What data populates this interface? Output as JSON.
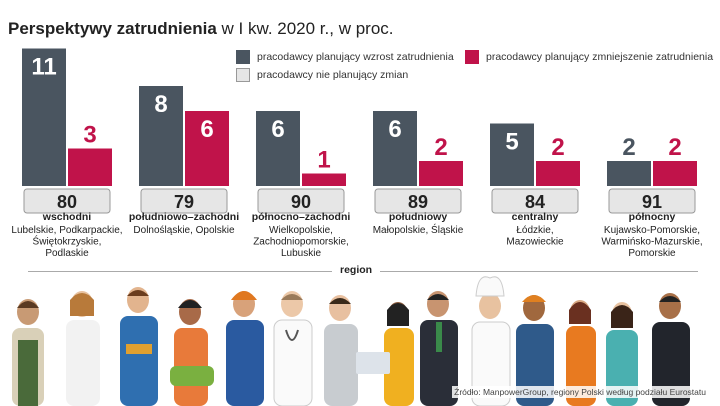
{
  "title": {
    "bold": "Perspektywy zatrudnienia",
    "rest": " w I kw. 2020 r., w proc."
  },
  "legend": {
    "increase": "pracodawcy planujący wzrost zatrudnienia",
    "decrease": "pracodawcy planujący zmniejszenie zatrudnienia",
    "nochange": "pracodawcy nie planujący zmian"
  },
  "colors": {
    "increase": "#4a5560",
    "decrease": "#c0134a",
    "nochange": "#e6e6e6",
    "nochange_border": "#999999"
  },
  "axis_label": "region",
  "source": "Źródło: ManpowerGroup, regiony Polski według podziału Eurostatu",
  "chart_data": {
    "type": "bar",
    "title": "Perspektywy zatrudnienia w I kw. 2020 r., w proc.",
    "xlabel": "region",
    "ylabel": "",
    "categories": [
      "wschodni",
      "południowo–zachodni",
      "północno–zachodni",
      "południowy",
      "centralny",
      "północny"
    ],
    "category_details": [
      [
        "Lubelskie, Podkarpackie,",
        "Świętokrzyskie,",
        "Podlaskie"
      ],
      [
        "Dolnośląskie, Opolskie"
      ],
      [
        "Wielkopolskie,",
        "Zachodniopomorskie,",
        "Lubuskie"
      ],
      [
        "Małopolskie, Śląskie"
      ],
      [
        "Łódzkie,",
        "Mazowieckie"
      ],
      [
        "Kujawsko-Pomorskie,",
        "Warmińsko-Mazurskie,",
        "Pomorskie"
      ]
    ],
    "series": [
      {
        "name": "pracodawcy planujący wzrost zatrudnienia",
        "values": [
          11,
          8,
          6,
          6,
          5,
          2
        ]
      },
      {
        "name": "pracodawcy planujący zmniejszenie zatrudnienia",
        "values": [
          3,
          6,
          1,
          2,
          2,
          2
        ]
      },
      {
        "name": "pracodawcy nie planujący zmian",
        "values": [
          80,
          79,
          90,
          89,
          84,
          91
        ]
      }
    ],
    "ylim": [
      0,
      12
    ]
  }
}
